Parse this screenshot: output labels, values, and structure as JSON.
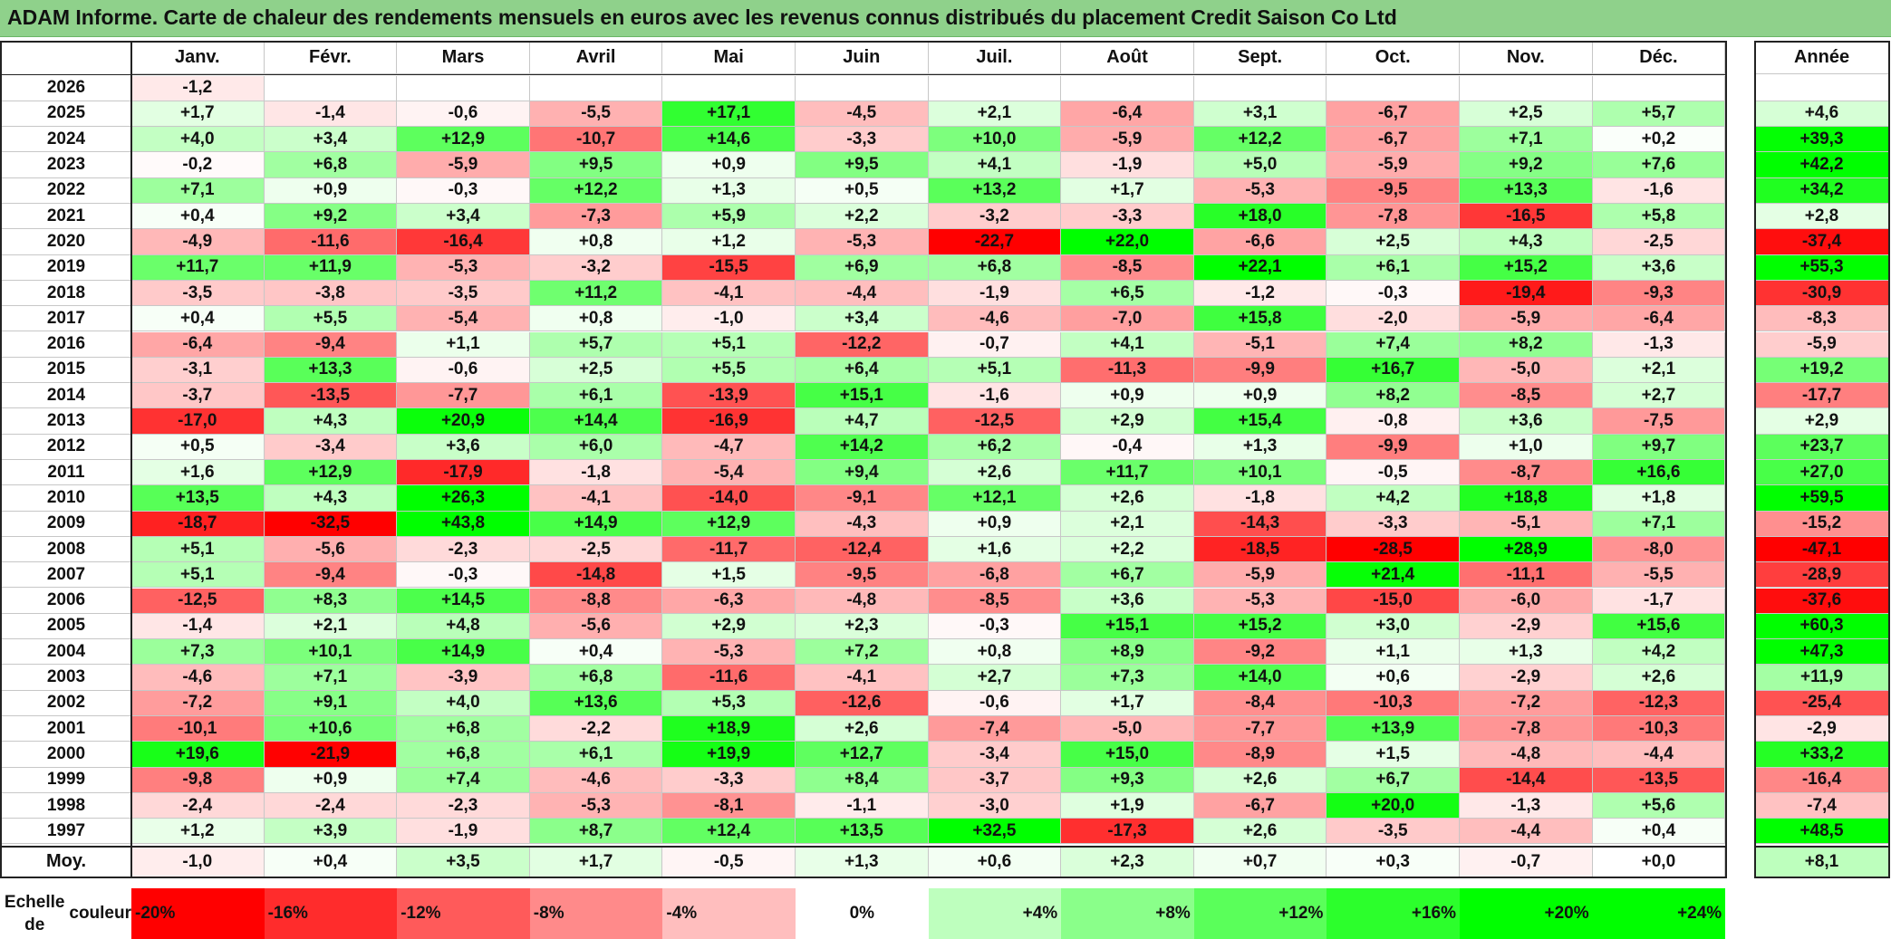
{
  "title": "ADAM Informe. Carte de chaleur des rendements mensuels en euros avec les revenus connus distribués du placement Credit Saison Co Ltd",
  "chart_data": {
    "type": "heatmap",
    "title": "ADAM Informe. Carte de chaleur des rendements mensuels en euros avec les revenus connus distribués du placement Credit Saison Co Ltd",
    "columns": [
      "Janv.",
      "Févr.",
      "Mars",
      "Avril",
      "Mai",
      "Juin",
      "Juil.",
      "Août",
      "Sept.",
      "Oct.",
      "Nov.",
      "Déc."
    ],
    "year_header": "Année",
    "rows": [
      {
        "year": "2026",
        "months": [
          "-1,2",
          "",
          "",
          "",
          "",
          "",
          "",
          "",
          "",
          "",
          "",
          ""
        ],
        "annual": ""
      },
      {
        "year": "2025",
        "months": [
          "+1,7",
          "-1,4",
          "-0,6",
          "-5,5",
          "+17,1",
          "-4,5",
          "+2,1",
          "-6,4",
          "+3,1",
          "-6,7",
          "+2,5",
          "+5,7"
        ],
        "annual": "+4,6"
      },
      {
        "year": "2024",
        "months": [
          "+4,0",
          "+3,4",
          "+12,9",
          "-10,7",
          "+14,6",
          "-3,3",
          "+10,0",
          "-5,9",
          "+12,2",
          "-6,7",
          "+7,1",
          "+0,2"
        ],
        "annual": "+39,3"
      },
      {
        "year": "2023",
        "months": [
          "-0,2",
          "+6,8",
          "-5,9",
          "+9,5",
          "+0,9",
          "+9,5",
          "+4,1",
          "-1,9",
          "+5,0",
          "-5,9",
          "+9,2",
          "+7,6"
        ],
        "annual": "+42,2"
      },
      {
        "year": "2022",
        "months": [
          "+7,1",
          "+0,9",
          "-0,3",
          "+12,2",
          "+1,3",
          "+0,5",
          "+13,2",
          "+1,7",
          "-5,3",
          "-9,5",
          "+13,3",
          "-1,6"
        ],
        "annual": "+34,2"
      },
      {
        "year": "2021",
        "months": [
          "+0,4",
          "+9,2",
          "+3,4",
          "-7,3",
          "+5,9",
          "+2,2",
          "-3,2",
          "-3,3",
          "+18,0",
          "-7,8",
          "-16,5",
          "+5,8"
        ],
        "annual": "+2,8"
      },
      {
        "year": "2020",
        "months": [
          "-4,9",
          "-11,6",
          "-16,4",
          "+0,8",
          "+1,2",
          "-5,3",
          "-22,7",
          "+22,0",
          "-6,6",
          "+2,5",
          "+4,3",
          "-2,5"
        ],
        "annual": "-37,4"
      },
      {
        "year": "2019",
        "months": [
          "+11,7",
          "+11,9",
          "-5,3",
          "-3,2",
          "-15,5",
          "+6,9",
          "+6,8",
          "-8,5",
          "+22,1",
          "+6,1",
          "+15,2",
          "+3,6"
        ],
        "annual": "+55,3"
      },
      {
        "year": "2018",
        "months": [
          "-3,5",
          "-3,8",
          "-3,5",
          "+11,2",
          "-4,1",
          "-4,4",
          "-1,9",
          "+6,5",
          "-1,2",
          "-0,3",
          "-19,4",
          "-9,3"
        ],
        "annual": "-30,9"
      },
      {
        "year": "2017",
        "months": [
          "+0,4",
          "+5,5",
          "-5,4",
          "+0,8",
          "-1,0",
          "+3,4",
          "-4,6",
          "-7,0",
          "+15,8",
          "-2,0",
          "-5,9",
          "-6,4"
        ],
        "annual": "-8,3"
      },
      {
        "year": "2016",
        "months": [
          "-6,4",
          "-9,4",
          "+1,1",
          "+5,7",
          "+5,1",
          "-12,2",
          "-0,7",
          "+4,1",
          "-5,1",
          "+7,4",
          "+8,2",
          "-1,3"
        ],
        "annual": "-5,9"
      },
      {
        "year": "2015",
        "months": [
          "-3,1",
          "+13,3",
          "-0,6",
          "+2,5",
          "+5,5",
          "+6,4",
          "+5,1",
          "-11,3",
          "-9,9",
          "+16,7",
          "-5,0",
          "+2,1"
        ],
        "annual": "+19,2"
      },
      {
        "year": "2014",
        "months": [
          "-3,7",
          "-13,5",
          "-7,7",
          "+6,1",
          "-13,9",
          "+15,1",
          "-1,6",
          "+0,9",
          "+0,9",
          "+8,2",
          "-8,5",
          "+2,7"
        ],
        "annual": "-17,7"
      },
      {
        "year": "2013",
        "months": [
          "-17,0",
          "+4,3",
          "+20,9",
          "+14,4",
          "-16,9",
          "+4,7",
          "-12,5",
          "+2,9",
          "+15,4",
          "-0,8",
          "+3,6",
          "-7,5"
        ],
        "annual": "+2,9"
      },
      {
        "year": "2012",
        "months": [
          "+0,5",
          "-3,4",
          "+3,6",
          "+6,0",
          "-4,7",
          "+14,2",
          "+6,2",
          "-0,4",
          "+1,3",
          "-9,9",
          "+1,0",
          "+9,7"
        ],
        "annual": "+23,7"
      },
      {
        "year": "2011",
        "months": [
          "+1,6",
          "+12,9",
          "-17,9",
          "-1,8",
          "-5,4",
          "+9,4",
          "+2,6",
          "+11,7",
          "+10,1",
          "-0,5",
          "-8,7",
          "+16,6"
        ],
        "annual": "+27,0"
      },
      {
        "year": "2010",
        "months": [
          "+13,5",
          "+4,3",
          "+26,3",
          "-4,1",
          "-14,0",
          "-9,1",
          "+12,1",
          "+2,6",
          "-1,8",
          "+4,2",
          "+18,8",
          "+1,8"
        ],
        "annual": "+59,5"
      },
      {
        "year": "2009",
        "months": [
          "-18,7",
          "-32,5",
          "+43,8",
          "+14,9",
          "+12,9",
          "-4,3",
          "+0,9",
          "+2,1",
          "-14,3",
          "-3,3",
          "-5,1",
          "+7,1"
        ],
        "annual": "-15,2"
      },
      {
        "year": "2008",
        "months": [
          "+5,1",
          "-5,6",
          "-2,3",
          "-2,5",
          "-11,7",
          "-12,4",
          "+1,6",
          "+2,2",
          "-18,5",
          "-28,5",
          "+28,9",
          "-8,0"
        ],
        "annual": "-47,1"
      },
      {
        "year": "2007",
        "months": [
          "+5,1",
          "-9,4",
          "-0,3",
          "-14,8",
          "+1,5",
          "-9,5",
          "-6,8",
          "+6,7",
          "-5,9",
          "+21,4",
          "-11,1",
          "-5,5"
        ],
        "annual": "-28,9"
      },
      {
        "year": "2006",
        "months": [
          "-12,5",
          "+8,3",
          "+14,5",
          "-8,8",
          "-6,3",
          "-4,8",
          "-8,5",
          "+3,6",
          "-5,3",
          "-15,0",
          "-6,0",
          "-1,7"
        ],
        "annual": "-37,6"
      },
      {
        "year": "2005",
        "months": [
          "-1,4",
          "+2,1",
          "+4,8",
          "-5,6",
          "+2,9",
          "+2,3",
          "-0,3",
          "+15,1",
          "+15,2",
          "+3,0",
          "-2,9",
          "+15,6"
        ],
        "annual": "+60,3"
      },
      {
        "year": "2004",
        "months": [
          "+7,3",
          "+10,1",
          "+14,9",
          "+0,4",
          "-5,3",
          "+7,2",
          "+0,8",
          "+8,9",
          "-9,2",
          "+1,1",
          "+1,3",
          "+4,2"
        ],
        "annual": "+47,3"
      },
      {
        "year": "2003",
        "months": [
          "-4,6",
          "+7,1",
          "-3,9",
          "+6,8",
          "-11,6",
          "-4,1",
          "+2,7",
          "+7,3",
          "+14,0",
          "+0,6",
          "-2,9",
          "+2,6"
        ],
        "annual": "+11,9"
      },
      {
        "year": "2002",
        "months": [
          "-7,2",
          "+9,1",
          "+4,0",
          "+13,6",
          "+5,3",
          "-12,6",
          "-0,6",
          "+1,7",
          "-8,4",
          "-10,3",
          "-7,2",
          "-12,3"
        ],
        "annual": "-25,4"
      },
      {
        "year": "2001",
        "months": [
          "-10,1",
          "+10,6",
          "+6,8",
          "-2,2",
          "+18,9",
          "+2,6",
          "-7,4",
          "-5,0",
          "-7,7",
          "+13,9",
          "-7,8",
          "-10,3"
        ],
        "annual": "-2,9"
      },
      {
        "year": "2000",
        "months": [
          "+19,6",
          "-21,9",
          "+6,8",
          "+6,1",
          "+19,9",
          "+12,7",
          "-3,4",
          "+15,0",
          "-8,9",
          "+1,5",
          "-4,8",
          "-4,4"
        ],
        "annual": "+33,2"
      },
      {
        "year": "1999",
        "months": [
          "-9,8",
          "+0,9",
          "+7,4",
          "-4,6",
          "-3,3",
          "+8,4",
          "-3,7",
          "+9,3",
          "+2,6",
          "+6,7",
          "-14,4",
          "-13,5"
        ],
        "annual": "-16,4"
      },
      {
        "year": "1998",
        "months": [
          "-2,4",
          "-2,4",
          "-2,3",
          "-5,3",
          "-8,1",
          "-1,1",
          "-3,0",
          "+1,9",
          "-6,7",
          "+20,0",
          "-1,3",
          "+5,6"
        ],
        "annual": "-7,4"
      },
      {
        "year": "1997",
        "months": [
          "+1,2",
          "+3,9",
          "-1,9",
          "+8,7",
          "+12,4",
          "+13,5",
          "+32,5",
          "-17,3",
          "+2,6",
          "-3,5",
          "-4,4",
          "+0,4"
        ],
        "annual": "+48,5"
      }
    ],
    "average": {
      "label": "Moy.",
      "months": [
        "-1,0",
        "+0,4",
        "+3,5",
        "+1,7",
        "-0,5",
        "+1,3",
        "+0,6",
        "+2,3",
        "+0,7",
        "+0,3",
        "-0,7",
        "+0,0"
      ],
      "annual": "+8,1"
    },
    "color_scale": {
      "label_line1": "Echelle de",
      "label_line2": "couleur",
      "stops": [
        {
          "value": -20,
          "label": "-20%"
        },
        {
          "value": -16,
          "label": "-16%"
        },
        {
          "value": -12,
          "label": "-12%"
        },
        {
          "value": -8,
          "label": "-8%"
        },
        {
          "value": -4,
          "label": "-4%"
        },
        {
          "value": 0,
          "label": "0%"
        },
        {
          "value": 4,
          "label": "+4%"
        },
        {
          "value": 8,
          "label": "+8%"
        },
        {
          "value": 12,
          "label": "+12%"
        },
        {
          "value": 16,
          "label": "+16%"
        },
        {
          "value": 20,
          "label": "+20%"
        },
        {
          "value": 24,
          "label": "+24%"
        }
      ],
      "negative_color": "#ff0000",
      "zero_color": "#ffffff",
      "positive_color": "#00ff00"
    }
  }
}
